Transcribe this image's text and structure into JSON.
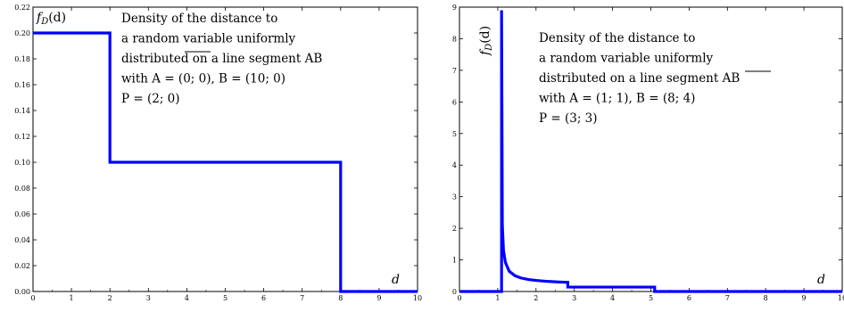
{
  "chart_data": [
    {
      "type": "line",
      "title": "",
      "xlabel": "d",
      "ylabel": "f_D(d)",
      "ylabel_display": "f",
      "ylabel_sub": "D",
      "ylabel_tail": "(d)",
      "xlim": [
        0,
        10
      ],
      "ylim": [
        0,
        0.22
      ],
      "xticks": [
        "0",
        "1",
        "2",
        "3",
        "4",
        "5",
        "6",
        "7",
        "8",
        "9",
        "10"
      ],
      "yticks": [
        "0.00",
        "0.02",
        "0.04",
        "0.06",
        "0.08",
        "0.10",
        "0.12",
        "0.14",
        "0.16",
        "0.18",
        "0.20",
        "0.22"
      ],
      "grid": false,
      "line_color": "#0000ff",
      "annotation": [
        "Density of the distance to",
        "a random variable uniformly",
        "distributed on a line segment AB",
        "with A = (0; 0), B = (10; 0)",
        "P = (2; 0)"
      ],
      "series": [
        {
          "x": [
            0,
            2,
            2,
            8,
            8,
            10
          ],
          "y": [
            0.2,
            0.2,
            0.1,
            0.1,
            0,
            0
          ]
        }
      ]
    },
    {
      "type": "line",
      "title": "",
      "xlabel": "d",
      "ylabel": "f_D(d)",
      "ylabel_display": "f",
      "ylabel_sub": "D",
      "ylabel_tail": "(d)",
      "xlim": [
        0,
        10
      ],
      "ylim": [
        0,
        9
      ],
      "xticks": [
        "0",
        "1",
        "2",
        "3",
        "4",
        "5",
        "6",
        "7",
        "8",
        "9",
        "10"
      ],
      "yticks": [
        "0",
        "1",
        "2",
        "3",
        "4",
        "5",
        "6",
        "7",
        "8",
        "9"
      ],
      "grid": false,
      "line_color": "#0000ff",
      "annotation": [
        "Density of the distance to",
        "a random variable uniformly",
        "distributed on a line segment AB",
        "with A = (1; 1), B = (8; 4)",
        "P = (3; 3)"
      ],
      "series": [
        {
          "x": [
            0,
            1.1,
            1.1,
            1.12,
            1.15,
            1.2,
            1.3,
            1.45,
            1.6,
            1.8,
            2.0,
            2.3,
            2.6,
            2.83,
            2.83,
            5.1,
            5.1,
            10
          ],
          "y": [
            0,
            0,
            8.9,
            2.1,
            1.3,
            0.92,
            0.64,
            0.5,
            0.43,
            0.38,
            0.35,
            0.32,
            0.3,
            0.29,
            0.14,
            0.14,
            0,
            0
          ]
        }
      ]
    }
  ]
}
